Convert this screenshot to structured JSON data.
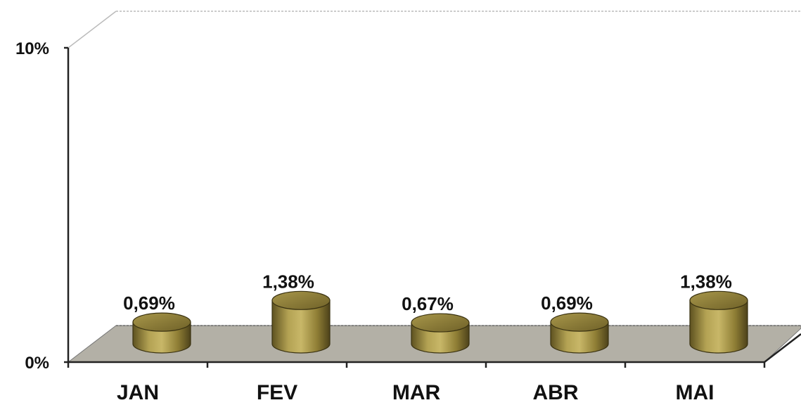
{
  "chart_data": {
    "type": "bar",
    "categories": [
      "JAN",
      "FEV",
      "MAR",
      "ABR",
      "MAI"
    ],
    "values": [
      0.69,
      1.38,
      0.67,
      0.69,
      1.38
    ],
    "value_labels": [
      "0,69%",
      "1,38%",
      "0,67%",
      "0,69%",
      "1,38%"
    ],
    "ylim": [
      0,
      10
    ],
    "yticks": [
      "0%",
      "10%"
    ],
    "title": "",
    "xlabel": "",
    "ylabel": "",
    "bar_shape": "cylinder",
    "bar_color": "#9c8a3c",
    "floor_color": "#b3b0a6",
    "grid": false,
    "legend": "none"
  }
}
